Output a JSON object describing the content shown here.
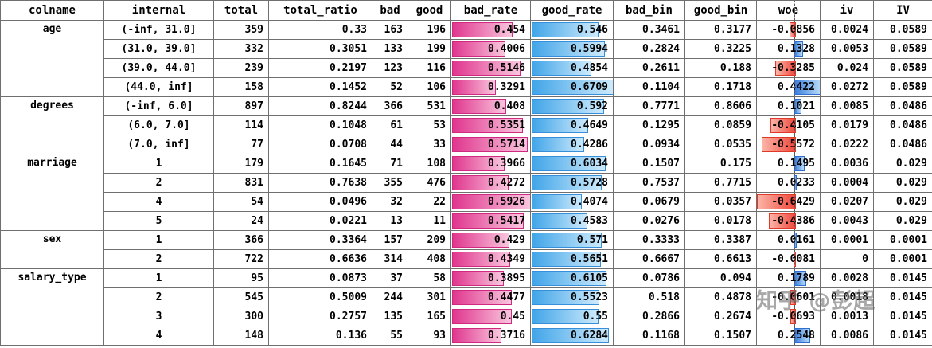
{
  "watermark": "知乎 @彭超",
  "colors": {
    "bad_rate_bar": "#e0368e",
    "good_rate_bar": "#41a5e8",
    "woe_positive_bar": "#3b7edd",
    "woe_negative_bar": "#f0483c",
    "gridline": "#6f6f6f"
  },
  "table": {
    "columns": [
      "colname",
      "internal",
      "total",
      "total_ratio",
      "bad",
      "good",
      "bad_rate",
      "good_rate",
      "bad_bin",
      "good_bin",
      "woe",
      "iv",
      "IV"
    ],
    "rows": [
      {
        "colname": "age",
        "group_span": 4,
        "internal": "(-inf, 31.0]",
        "total": "359",
        "total_ratio": "0.33",
        "bad": "163",
        "good": "196",
        "bad_rate": "0.454",
        "good_rate": "0.546",
        "bad_bin": "0.3461",
        "good_bin": "0.3177",
        "woe": "-0.0856",
        "iv": "0.0024",
        "IV": "0.0589"
      },
      {
        "internal": "(31.0, 39.0]",
        "total": "332",
        "total_ratio": "0.3051",
        "bad": "133",
        "good": "199",
        "bad_rate": "0.4006",
        "good_rate": "0.5994",
        "bad_bin": "0.2824",
        "good_bin": "0.3225",
        "woe": "0.1328",
        "iv": "0.0053",
        "IV": "0.0589"
      },
      {
        "internal": "(39.0, 44.0]",
        "total": "239",
        "total_ratio": "0.2197",
        "bad": "123",
        "good": "116",
        "bad_rate": "0.5146",
        "good_rate": "0.4854",
        "bad_bin": "0.2611",
        "good_bin": "0.188",
        "woe": "-0.3285",
        "iv": "0.024",
        "IV": "0.0589"
      },
      {
        "internal": "(44.0, inf]",
        "total": "158",
        "total_ratio": "0.1452",
        "bad": "52",
        "good": "106",
        "bad_rate": "0.3291",
        "good_rate": "0.6709",
        "bad_bin": "0.1104",
        "good_bin": "0.1718",
        "woe": "0.4422",
        "iv": "0.0272",
        "IV": "0.0589"
      },
      {
        "colname": "degrees",
        "group_span": 3,
        "internal": "(-inf, 6.0]",
        "total": "897",
        "total_ratio": "0.8244",
        "bad": "366",
        "good": "531",
        "bad_rate": "0.408",
        "good_rate": "0.592",
        "bad_bin": "0.7771",
        "good_bin": "0.8606",
        "woe": "0.1021",
        "iv": "0.0085",
        "IV": "0.0486"
      },
      {
        "internal": "(6.0, 7.0]",
        "total": "114",
        "total_ratio": "0.1048",
        "bad": "61",
        "good": "53",
        "bad_rate": "0.5351",
        "good_rate": "0.4649",
        "bad_bin": "0.1295",
        "good_bin": "0.0859",
        "woe": "-0.4105",
        "iv": "0.0179",
        "IV": "0.0486"
      },
      {
        "internal": "(7.0, inf]",
        "total": "77",
        "total_ratio": "0.0708",
        "bad": "44",
        "good": "33",
        "bad_rate": "0.5714",
        "good_rate": "0.4286",
        "bad_bin": "0.0934",
        "good_bin": "0.0535",
        "woe": "-0.5572",
        "iv": "0.0222",
        "IV": "0.0486"
      },
      {
        "colname": "marriage",
        "group_span": 4,
        "internal": "1",
        "total": "179",
        "total_ratio": "0.1645",
        "bad": "71",
        "good": "108",
        "bad_rate": "0.3966",
        "good_rate": "0.6034",
        "bad_bin": "0.1507",
        "good_bin": "0.175",
        "woe": "0.1495",
        "iv": "0.0036",
        "IV": "0.029"
      },
      {
        "internal": "2",
        "total": "831",
        "total_ratio": "0.7638",
        "bad": "355",
        "good": "476",
        "bad_rate": "0.4272",
        "good_rate": "0.5728",
        "bad_bin": "0.7537",
        "good_bin": "0.7715",
        "woe": "0.0233",
        "iv": "0.0004",
        "IV": "0.029"
      },
      {
        "internal": "4",
        "total": "54",
        "total_ratio": "0.0496",
        "bad": "32",
        "good": "22",
        "bad_rate": "0.5926",
        "good_rate": "0.4074",
        "bad_bin": "0.0679",
        "good_bin": "0.0357",
        "woe": "-0.6429",
        "iv": "0.0207",
        "IV": "0.029"
      },
      {
        "internal": "5",
        "total": "24",
        "total_ratio": "0.0221",
        "bad": "13",
        "good": "11",
        "bad_rate": "0.5417",
        "good_rate": "0.4583",
        "bad_bin": "0.0276",
        "good_bin": "0.0178",
        "woe": "-0.4386",
        "iv": "0.0043",
        "IV": "0.029"
      },
      {
        "colname": "sex",
        "group_span": 2,
        "internal": "1",
        "total": "366",
        "total_ratio": "0.3364",
        "bad": "157",
        "good": "209",
        "bad_rate": "0.429",
        "good_rate": "0.571",
        "bad_bin": "0.3333",
        "good_bin": "0.3387",
        "woe": "0.0161",
        "iv": "0.0001",
        "IV": "0.0001"
      },
      {
        "internal": "2",
        "total": "722",
        "total_ratio": "0.6636",
        "bad": "314",
        "good": "408",
        "bad_rate": "0.4349",
        "good_rate": "0.5651",
        "bad_bin": "0.6667",
        "good_bin": "0.6613",
        "woe": "-0.0081",
        "iv": "0",
        "IV": "0.0001"
      },
      {
        "colname": "salary_type",
        "group_span": 4,
        "internal": "1",
        "total": "95",
        "total_ratio": "0.0873",
        "bad": "37",
        "good": "58",
        "bad_rate": "0.3895",
        "good_rate": "0.6105",
        "bad_bin": "0.0786",
        "good_bin": "0.094",
        "woe": "0.1789",
        "iv": "0.0028",
        "IV": "0.0145"
      },
      {
        "internal": "2",
        "total": "545",
        "total_ratio": "0.5009",
        "bad": "244",
        "good": "301",
        "bad_rate": "0.4477",
        "good_rate": "0.5523",
        "bad_bin": "0.518",
        "good_bin": "0.4878",
        "woe": "-0.0601",
        "iv": "0.0018",
        "IV": "0.0145"
      },
      {
        "internal": "3",
        "total": "300",
        "total_ratio": "0.2757",
        "bad": "135",
        "good": "165",
        "bad_rate": "0.45",
        "good_rate": "0.55",
        "bad_bin": "0.2866",
        "good_bin": "0.2674",
        "woe": "-0.0693",
        "iv": "0.0013",
        "IV": "0.0145"
      },
      {
        "internal": "4",
        "total": "148",
        "total_ratio": "0.136",
        "bad": "55",
        "good": "93",
        "bad_rate": "0.3716",
        "good_rate": "0.6284",
        "bad_bin": "0.1168",
        "good_bin": "0.1507",
        "woe": "0.2548",
        "iv": "0.0086",
        "IV": "0.0145"
      }
    ]
  }
}
